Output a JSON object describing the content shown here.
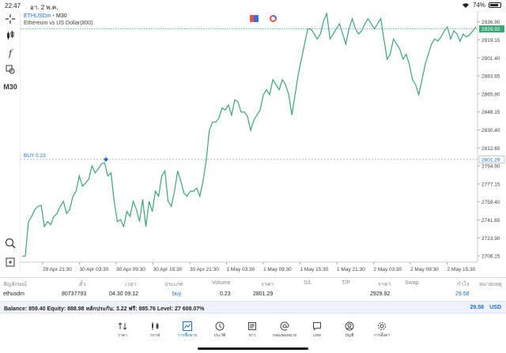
{
  "status_bar": {
    "time": "22:47",
    "date": "อา. 2 พ.ค.",
    "battery": "74%"
  },
  "toolbar": {
    "timeframe": "M30"
  },
  "chart_header": {
    "symbol": "ETHUSDm",
    "timeframe": "M30",
    "description": "Ethereum vs US Dollar(800)"
  },
  "chart_data": {
    "type": "line",
    "symbol": "ETHUSDm",
    "y_ticks": [
      "2936.90",
      "2919.15",
      "2901.40",
      "2883.65",
      "2865.90",
      "2848.15",
      "2830.40",
      "2812.65",
      "2794.90",
      "2777.15",
      "2759.40",
      "2741.65",
      "2723.90",
      "2706.15"
    ],
    "x_ticks": [
      "29 Apr 21:30",
      "30 Apr 03:30",
      "30 Apr 09:30",
      "30 Apr 15:30",
      "30 Apr 21:30",
      "1 May 03:30",
      "1 May 09:30",
      "1 May 15:30",
      "1 May 21:30",
      "2 May 03:30",
      "2 May 09:30",
      "2 May 15:30"
    ],
    "ylim": [
      2700,
      2946
    ],
    "current_price": "2929.92",
    "order_price": "2801.29",
    "order_label": "BUY 0.23",
    "line_color": "#3aa676",
    "close_prices": [
      2706,
      2706,
      2740,
      2745,
      2752,
      2755,
      2756,
      2735,
      2740,
      2737,
      2745,
      2748,
      2755,
      2760,
      2748,
      2752,
      2765,
      2770,
      2785,
      2775,
      2778,
      2782,
      2795,
      2788,
      2792,
      2797,
      2798,
      2785,
      2788,
      2760,
      2740,
      2742,
      2735,
      2750,
      2745,
      2760,
      2752,
      2740,
      2762,
      2735,
      2760,
      2750,
      2770,
      2765,
      2785,
      2790,
      2760,
      2755,
      2770,
      2790,
      2780,
      2768,
      2765,
      2770,
      2770,
      2773,
      2765,
      2780,
      2800,
      2830,
      2838,
      2838,
      2842,
      2852,
      2850,
      2855,
      2845,
      2860,
      2858,
      2848,
      2848,
      2844,
      2830,
      2840,
      2845,
      2850,
      2865,
      2870,
      2865,
      2880,
      2875,
      2870,
      2880,
      2875,
      2865,
      2845,
      2865,
      2885,
      2900,
      2915,
      2930,
      2930,
      2925,
      2920,
      2925,
      2938,
      2945,
      2920,
      2925,
      2930,
      2935,
      2925,
      2915,
      2930,
      2940,
      2930,
      2925,
      2928,
      2935,
      2940,
      2935,
      2930,
      2935,
      2940,
      2920,
      2900,
      2905,
      2920,
      2915,
      2910,
      2900,
      2905,
      2895,
      2880,
      2875,
      2865,
      2880,
      2895,
      2905,
      2915,
      2920,
      2918,
      2922,
      2928,
      2932,
      2920,
      2928,
      2925,
      2918,
      2925,
      2922,
      2924,
      2928,
      2932
    ]
  },
  "trade_table": {
    "headers": [
      "สัญลักษณ์",
      "ตั๋ว",
      "เวลา",
      "ประเภท",
      "Volume",
      "ราคา",
      "S/L",
      "T/P",
      "ราคา",
      "Swap",
      "กำไร",
      "หมายเหตุ"
    ],
    "row": {
      "symbol": "ethusdm",
      "ticket": "80737793",
      "time": "04.30 09:12",
      "type": "buy",
      "volume": "0.23",
      "open_price": "2801.29",
      "current_price": "2929.92",
      "profit": "29.58"
    }
  },
  "balance": {
    "text": "Balance: 859.40 Equity: 888.98 หลักประกัน: 3.22 ฟรี: 885.76 Level: 27 608.07%",
    "profit": "29.58",
    "currency": "USD"
  },
  "nav": [
    {
      "label": "ราคา",
      "icon": "quotes-icon"
    },
    {
      "label": "กราฟ",
      "icon": "chart-icon"
    },
    {
      "label": "การซื้อขาย",
      "icon": "trade-icon",
      "active": true
    },
    {
      "label": "ประวัติ",
      "icon": "history-icon"
    },
    {
      "label": "ข่าว",
      "icon": "news-icon"
    },
    {
      "label": "กล่องจดหมาย",
      "icon": "mail-icon"
    },
    {
      "label": "แชท",
      "icon": "chat-icon"
    },
    {
      "label": "บัญชี",
      "icon": "account-icon"
    },
    {
      "label": "การตั้งค่า",
      "icon": "settings-icon"
    }
  ],
  "colors": {
    "accent": "#1a6fd1",
    "line": "#3aa676",
    "current_price_bg": "#3aa676"
  }
}
